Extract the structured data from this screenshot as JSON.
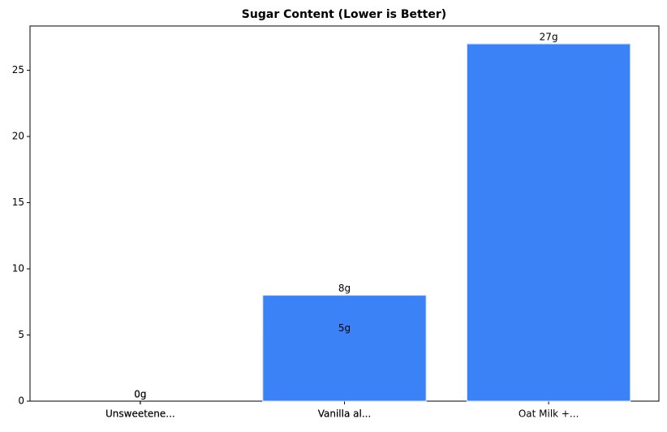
{
  "chart_data": {
    "type": "bar",
    "title": "Sugar Content (Lower is Better)",
    "categories": [
      "Unsweetene...",
      "Unsweetene...",
      "Vanilla al...",
      "Vanilla al...",
      "Oat Milk +..."
    ],
    "values": [
      0,
      0,
      5,
      8,
      27
    ],
    "value_labels": [
      "0g",
      "0g",
      "5g",
      "8g",
      "27g"
    ],
    "color": "#3b82f6",
    "ylim": [
      0,
      28.35
    ],
    "yticks": [
      0,
      5,
      10,
      15,
      20,
      25
    ],
    "grid": false
  }
}
